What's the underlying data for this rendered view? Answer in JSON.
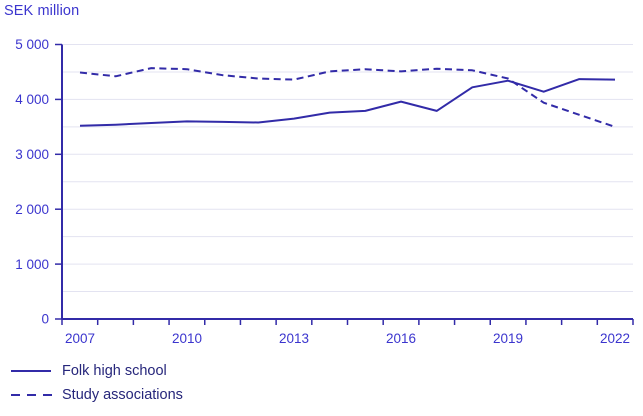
{
  "title": "SEK million",
  "chart_data": {
    "type": "line",
    "title": "SEK million",
    "x": [
      2007,
      2008,
      2009,
      2010,
      2011,
      2012,
      2013,
      2014,
      2015,
      2016,
      2017,
      2018,
      2019,
      2020,
      2021,
      2022
    ],
    "series": [
      {
        "name": "Folk high school",
        "style": "solid",
        "values": [
          3520,
          3540,
          3570,
          3600,
          3590,
          3580,
          3650,
          3760,
          3790,
          3960,
          3790,
          4220,
          4340,
          4140,
          4370,
          4360
        ]
      },
      {
        "name": "Study associations",
        "style": "dashed",
        "values": [
          4490,
          4420,
          4570,
          4550,
          4440,
          4380,
          4360,
          4510,
          4550,
          4510,
          4560,
          4530,
          4380,
          3940,
          3720,
          3500
        ]
      }
    ],
    "ylim": [
      0,
      5000
    ],
    "ytick_step": 1000,
    "grid_step": 500,
    "ytick_labels": [
      "0",
      "1 000",
      "2 000",
      "3 000",
      "4 000",
      "5 000"
    ],
    "xtick_labels_shown": [
      "2007",
      "2010",
      "2013",
      "2016",
      "2019",
      "2022"
    ],
    "xlabel_every": 3,
    "grid": true,
    "legend_position": "bottom-left"
  },
  "colors": {
    "line": "#322BA8",
    "axis": "#322BA8",
    "tick_text": "#3B35CE",
    "title_text": "#3B35CE",
    "legend_text": "#26267B",
    "gridline": "#E3E3F1",
    "background": "#FFFFFF"
  }
}
